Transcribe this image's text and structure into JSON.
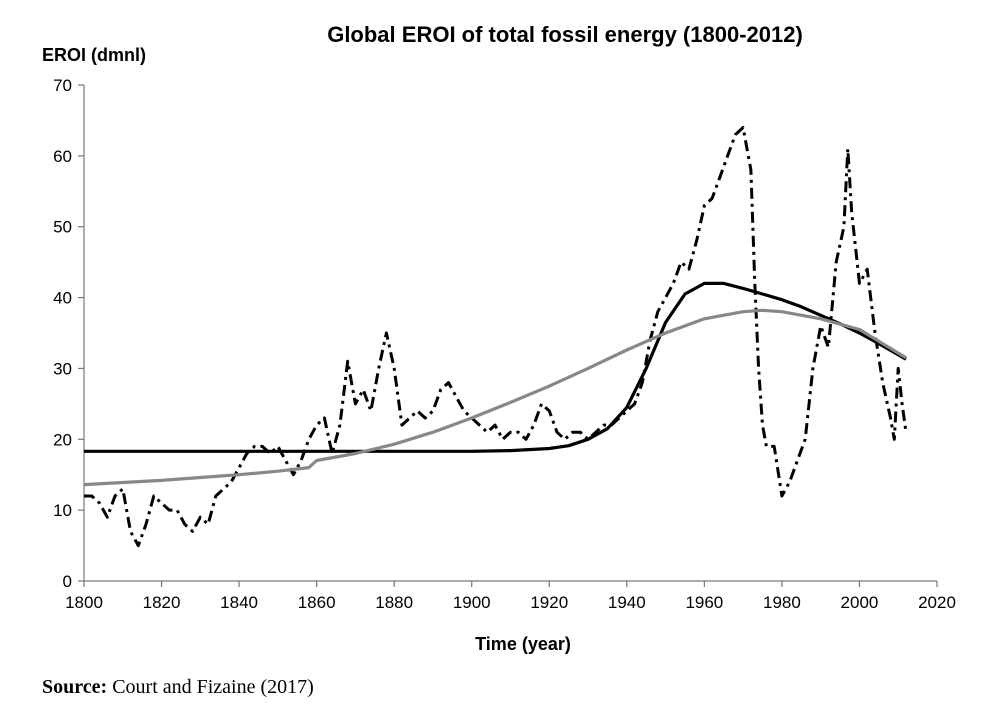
{
  "chart_data": {
    "type": "line",
    "title": "Global EROI of total fossil energy (1800-2012)",
    "xlabel": "Time (year)",
    "ylabel": "EROI (dmnl)",
    "xlim": [
      1800,
      2020
    ],
    "ylim": [
      0,
      70
    ],
    "x_ticks": [
      1800,
      1820,
      1840,
      1860,
      1880,
      1900,
      1920,
      1940,
      1960,
      1980,
      2000,
      2020
    ],
    "y_ticks": [
      0,
      10,
      20,
      30,
      40,
      50,
      60,
      70
    ],
    "grid": false,
    "legend": "none",
    "series": [
      {
        "style": "dash-dot",
        "color": "#000000",
        "points": [
          [
            1800,
            12
          ],
          [
            1802,
            12
          ],
          [
            1804,
            11
          ],
          [
            1806,
            9
          ],
          [
            1808,
            12
          ],
          [
            1810,
            13
          ],
          [
            1812,
            7
          ],
          [
            1814,
            5
          ],
          [
            1816,
            8
          ],
          [
            1818,
            12
          ],
          [
            1820,
            11
          ],
          [
            1822,
            10
          ],
          [
            1824,
            10
          ],
          [
            1826,
            8
          ],
          [
            1828,
            7
          ],
          [
            1830,
            9
          ],
          [
            1832,
            8
          ],
          [
            1834,
            12
          ],
          [
            1836,
            13
          ],
          [
            1838,
            14
          ],
          [
            1840,
            16
          ],
          [
            1842,
            18
          ],
          [
            1844,
            19
          ],
          [
            1846,
            19
          ],
          [
            1848,
            18
          ],
          [
            1850,
            19
          ],
          [
            1852,
            17
          ],
          [
            1854,
            15
          ],
          [
            1856,
            17
          ],
          [
            1858,
            20
          ],
          [
            1860,
            22
          ],
          [
            1862,
            23
          ],
          [
            1864,
            18
          ],
          [
            1866,
            22
          ],
          [
            1868,
            31
          ],
          [
            1870,
            25
          ],
          [
            1872,
            27
          ],
          [
            1874,
            24
          ],
          [
            1876,
            30
          ],
          [
            1878,
            35
          ],
          [
            1880,
            30
          ],
          [
            1882,
            22
          ],
          [
            1884,
            23
          ],
          [
            1886,
            24
          ],
          [
            1888,
            23
          ],
          [
            1890,
            24
          ],
          [
            1892,
            27
          ],
          [
            1894,
            28
          ],
          [
            1896,
            26
          ],
          [
            1898,
            24
          ],
          [
            1900,
            23
          ],
          [
            1902,
            22
          ],
          [
            1904,
            21
          ],
          [
            1906,
            22
          ],
          [
            1908,
            20
          ],
          [
            1910,
            21
          ],
          [
            1912,
            21
          ],
          [
            1914,
            20
          ],
          [
            1916,
            22
          ],
          [
            1918,
            25
          ],
          [
            1920,
            24
          ],
          [
            1922,
            21
          ],
          [
            1924,
            20
          ],
          [
            1926,
            21
          ],
          [
            1928,
            21
          ],
          [
            1930,
            20
          ],
          [
            1932,
            21
          ],
          [
            1934,
            22
          ],
          [
            1936,
            22
          ],
          [
            1938,
            23
          ],
          [
            1940,
            24
          ],
          [
            1942,
            25
          ],
          [
            1944,
            28
          ],
          [
            1946,
            34
          ],
          [
            1948,
            38
          ],
          [
            1950,
            40
          ],
          [
            1952,
            42
          ],
          [
            1954,
            45
          ],
          [
            1956,
            44
          ],
          [
            1958,
            48
          ],
          [
            1960,
            53
          ],
          [
            1962,
            54
          ],
          [
            1964,
            57
          ],
          [
            1966,
            60
          ],
          [
            1968,
            63
          ],
          [
            1970,
            64
          ],
          [
            1972,
            58
          ],
          [
            1973,
            42
          ],
          [
            1974,
            30
          ],
          [
            1975,
            22
          ],
          [
            1976,
            19
          ],
          [
            1978,
            19
          ],
          [
            1980,
            12
          ],
          [
            1982,
            14
          ],
          [
            1984,
            17
          ],
          [
            1986,
            20
          ],
          [
            1988,
            30
          ],
          [
            1990,
            36
          ],
          [
            1992,
            33
          ],
          [
            1994,
            45
          ],
          [
            1996,
            50
          ],
          [
            1997,
            61
          ],
          [
            1998,
            52
          ],
          [
            2000,
            42
          ],
          [
            2002,
            44
          ],
          [
            2004,
            35
          ],
          [
            2006,
            28
          ],
          [
            2008,
            23
          ],
          [
            2009,
            20
          ],
          [
            2010,
            30
          ],
          [
            2011,
            25
          ],
          [
            2012,
            21
          ]
        ]
      },
      {
        "style": "solid",
        "color": "#000000",
        "points": [
          [
            1800,
            18.3
          ],
          [
            1820,
            18.3
          ],
          [
            1840,
            18.3
          ],
          [
            1860,
            18.3
          ],
          [
            1880,
            18.3
          ],
          [
            1900,
            18.3
          ],
          [
            1910,
            18.4
          ],
          [
            1920,
            18.7
          ],
          [
            1925,
            19.1
          ],
          [
            1930,
            20
          ],
          [
            1935,
            21.5
          ],
          [
            1940,
            24.5
          ],
          [
            1945,
            30
          ],
          [
            1950,
            36.5
          ],
          [
            1955,
            40.5
          ],
          [
            1960,
            42
          ],
          [
            1965,
            42
          ],
          [
            1970,
            41.3
          ],
          [
            1975,
            40.5
          ],
          [
            1980,
            39.7
          ],
          [
            1985,
            38.7
          ],
          [
            1990,
            37.5
          ],
          [
            1995,
            36.3
          ],
          [
            2000,
            35
          ],
          [
            2005,
            33.5
          ],
          [
            2012,
            31.3
          ]
        ]
      },
      {
        "style": "solid",
        "color": "#888888",
        "points": [
          [
            1800,
            13.6
          ],
          [
            1810,
            13.9
          ],
          [
            1820,
            14.2
          ],
          [
            1830,
            14.6
          ],
          [
            1840,
            15
          ],
          [
            1850,
            15.5
          ],
          [
            1858,
            16
          ],
          [
            1860,
            17
          ],
          [
            1870,
            18
          ],
          [
            1880,
            19.3
          ],
          [
            1890,
            21
          ],
          [
            1900,
            23
          ],
          [
            1910,
            25.2
          ],
          [
            1920,
            27.5
          ],
          [
            1930,
            30
          ],
          [
            1940,
            32.6
          ],
          [
            1950,
            35
          ],
          [
            1960,
            37
          ],
          [
            1970,
            38
          ],
          [
            1975,
            38.2
          ],
          [
            1980,
            38
          ],
          [
            1990,
            37
          ],
          [
            2000,
            35.5
          ],
          [
            2012,
            31.5
          ]
        ]
      }
    ]
  },
  "source": {
    "label": "Source:",
    "text": "Court and Fizaine (2017)"
  }
}
